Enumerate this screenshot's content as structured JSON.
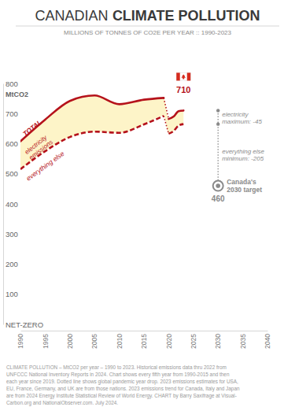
{
  "chart_data": {
    "type": "line",
    "title": [
      "CANADIAN",
      "CLIMATE POLLUTION"
    ],
    "subtitle": "MILLIONS OF TONNES OF CO2E PER YEAR :: 1990-2023",
    "ylabel": "MtCO2",
    "x": [
      1990,
      1995,
      2000,
      2005,
      2010,
      2015,
      2019,
      2020,
      2021,
      2022,
      2023
    ],
    "series": [
      {
        "name": "TOTAL",
        "color": "#b5121b",
        "line_style": "solid",
        "values": [
          608,
          680,
          742,
          760,
          731,
          746,
          752,
          682,
          690,
          708,
          710
        ],
        "value_labels": [
          null,
          null,
          null,
          null,
          null,
          null,
          null,
          null,
          null,
          null,
          "710"
        ]
      },
      {
        "name": "everything else",
        "color": "#b5121b",
        "line_style": "dashed",
        "values": [
          515,
          575,
          622,
          640,
          636,
          664,
          692,
          633,
          642,
          660,
          665
        ]
      }
    ],
    "band": {
      "label": [
        "electricity",
        "emissions"
      ],
      "color": "#fdf4c8"
    },
    "reductions": [
      {
        "x": 2030,
        "from": 710,
        "to": 665,
        "text": [
          "electricity",
          "maximum: -45"
        ]
      },
      {
        "x": 2030,
        "from": 665,
        "to": 460,
        "text": [
          "everything else",
          "minimum: -205"
        ]
      }
    ],
    "target": {
      "x": 2030,
      "value": 460,
      "label": [
        "Canada's",
        "2030 target"
      ],
      "value_label": "460"
    },
    "xlim": [
      1990,
      2040
    ],
    "xticks": [
      1990,
      1995,
      2000,
      2005,
      2010,
      2015,
      2020,
      2025,
      2030,
      2035,
      2040
    ],
    "ylim": [
      0,
      800
    ],
    "yticks": [
      {
        "value": 0,
        "label": "NET-ZERO"
      },
      100,
      200,
      300,
      400,
      500,
      600,
      700,
      800
    ],
    "grid": false,
    "footer": [
      "CLIMATE POLLUTION – MtCO2 per year – 1990 to 2023. Historical emissions data thru 2022 from",
      "UNFCCC National Inventory Reports in 2024. Chart shows every fifth year from 1990-2015 and then",
      "each year since 2019. Dotted line shows global pandemic year drop. 2023 emissions estimates for USA,",
      "EU, France, Germany, and UK are from those nations. 2023 emissions trend for Canada, Italy and Japan",
      "are from 2024 Energy Institute Statistical Review of World Energy. CHART by Barry Saxifrage at Visual-",
      "Carbon.org and NationalObserver.com. July 2024."
    ]
  }
}
